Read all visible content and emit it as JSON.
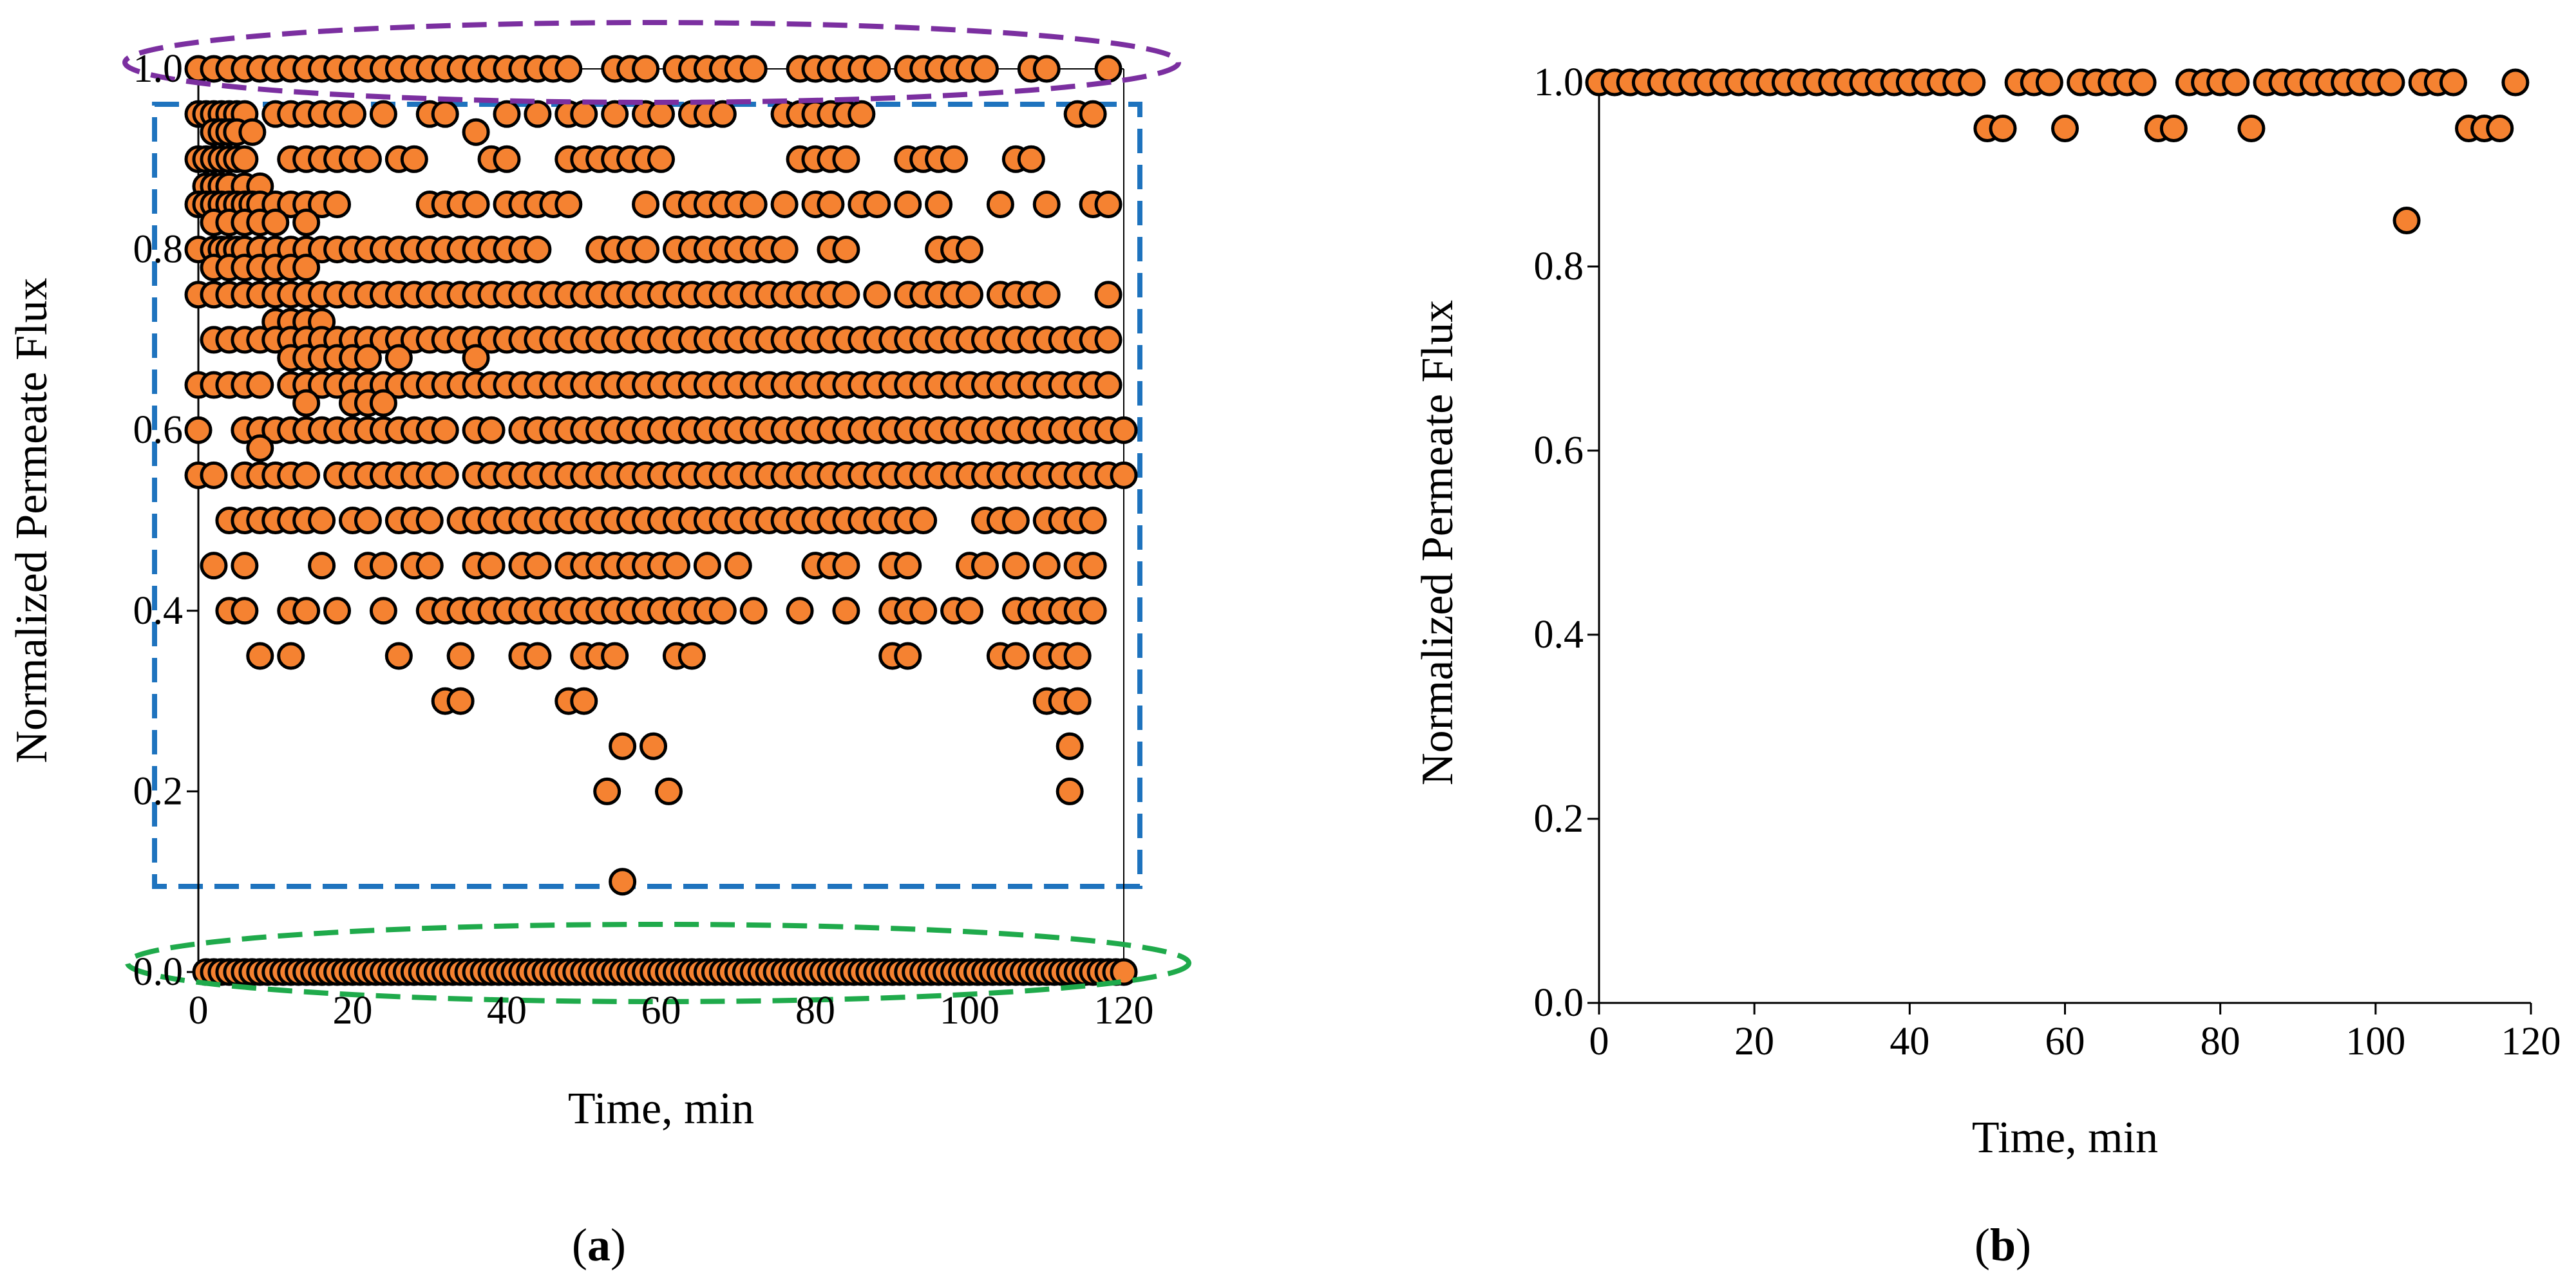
{
  "colors": {
    "marker_fill": "#F58231",
    "marker_stroke": "#000000",
    "highlight_top": "#7B2FA0",
    "highlight_middle": "#1E73BE",
    "highlight_bottom": "#1FAA4B",
    "axis": "#000000"
  },
  "chart_data": [
    {
      "panel": "a",
      "panel_label": "a",
      "type": "scatter",
      "xlabel": "Time, min",
      "ylabel": "Normalized Permeate Flux",
      "xlim": [
        0,
        120
      ],
      "ylim": [
        0,
        1.0
      ],
      "xticks": [
        "0",
        "20",
        "40",
        "60",
        "80",
        "100",
        "120"
      ],
      "yticks": [
        "0.0",
        "0.2",
        "0.4",
        "0.6",
        "0.8",
        "1.0"
      ],
      "highlights": [
        {
          "shape": "ellipse",
          "color": "purple",
          "region": "flux = 1.0 band"
        },
        {
          "shape": "rectangle",
          "color": "blue",
          "region": "flux 0.1 to 0.95 band"
        },
        {
          "shape": "ellipse",
          "color": "green",
          "region": "flux = 0.0 band"
        }
      ],
      "rows": [
        {
          "y": 1.0,
          "x": [
            0,
            2,
            4,
            6,
            8,
            10,
            12,
            14,
            16,
            18,
            20,
            22,
            24,
            26,
            28,
            30,
            32,
            34,
            36,
            38,
            40,
            42,
            44,
            46,
            48,
            54,
            56,
            58,
            62,
            64,
            66,
            68,
            70,
            72,
            78,
            80,
            82,
            84,
            86,
            88,
            92,
            94,
            96,
            98,
            100,
            102,
            108,
            110,
            118
          ]
        },
        {
          "y": 0.95,
          "x": [
            0,
            1,
            2,
            3,
            4,
            5,
            6,
            10,
            12,
            14,
            16,
            18,
            20,
            24,
            30,
            32,
            40,
            44,
            48,
            50,
            54,
            58,
            60,
            64,
            66,
            68,
            76,
            78,
            80,
            82,
            84,
            86,
            114,
            116
          ]
        },
        {
          "y": 0.93,
          "x": [
            2,
            3,
            4,
            5,
            7,
            36
          ]
        },
        {
          "y": 0.9,
          "x": [
            0,
            1,
            2,
            3,
            4,
            5,
            6,
            12,
            14,
            16,
            18,
            20,
            22,
            26,
            28,
            38,
            40,
            48,
            50,
            52,
            54,
            56,
            58,
            60,
            78,
            80,
            82,
            84,
            92,
            94,
            96,
            98,
            106,
            108
          ]
        },
        {
          "y": 0.87,
          "x": [
            1,
            2,
            3,
            4,
            6,
            8
          ]
        },
        {
          "y": 0.85,
          "x": [
            0,
            1,
            2,
            3,
            4,
            5,
            6,
            7,
            8,
            10,
            12,
            14,
            16,
            18,
            30,
            32,
            34,
            36,
            40,
            42,
            44,
            46,
            48,
            58,
            62,
            64,
            66,
            68,
            70,
            72,
            76,
            80,
            82,
            86,
            88,
            92,
            96,
            104,
            110,
            116,
            118
          ]
        },
        {
          "y": 0.83,
          "x": [
            2,
            4,
            6,
            8,
            10,
            14
          ]
        },
        {
          "y": 0.8,
          "x": [
            0,
            2,
            3,
            4,
            5,
            6,
            8,
            10,
            12,
            14,
            16,
            18,
            20,
            22,
            24,
            26,
            28,
            30,
            32,
            34,
            36,
            38,
            40,
            42,
            44,
            52,
            54,
            56,
            58,
            62,
            64,
            66,
            68,
            70,
            72,
            74,
            76,
            82,
            84,
            96,
            98,
            100
          ]
        },
        {
          "y": 0.78,
          "x": [
            2,
            4,
            6,
            8,
            10,
            12,
            14
          ]
        },
        {
          "y": 0.75,
          "x": [
            0,
            2,
            4,
            6,
            8,
            10,
            12,
            14,
            16,
            18,
            20,
            22,
            24,
            26,
            28,
            30,
            32,
            34,
            36,
            38,
            40,
            42,
            44,
            46,
            48,
            50,
            52,
            54,
            56,
            58,
            60,
            62,
            64,
            66,
            68,
            70,
            72,
            74,
            76,
            78,
            80,
            82,
            84,
            88,
            92,
            94,
            96,
            98,
            100,
            104,
            106,
            108,
            110,
            118
          ]
        },
        {
          "y": 0.72,
          "x": [
            10,
            12,
            14,
            16
          ]
        },
        {
          "y": 0.7,
          "x": [
            2,
            4,
            6,
            8,
            10,
            12,
            14,
            16,
            18,
            20,
            22,
            24,
            26,
            28,
            30,
            32,
            34,
            36,
            38,
            40,
            42,
            44,
            46,
            48,
            50,
            52,
            54,
            56,
            58,
            60,
            62,
            64,
            66,
            68,
            70,
            72,
            74,
            76,
            78,
            80,
            82,
            84,
            86,
            88,
            90,
            92,
            94,
            96,
            98,
            100,
            102,
            104,
            106,
            108,
            110,
            112,
            114,
            116,
            118
          ]
        },
        {
          "y": 0.68,
          "x": [
            12,
            14,
            16,
            18,
            20,
            22,
            26,
            36
          ]
        },
        {
          "y": 0.65,
          "x": [
            0,
            2,
            4,
            6,
            8,
            12,
            14,
            16,
            18,
            20,
            22,
            24,
            26,
            28,
            30,
            32,
            34,
            36,
            38,
            40,
            42,
            44,
            46,
            48,
            50,
            52,
            54,
            56,
            58,
            60,
            62,
            64,
            66,
            68,
            70,
            72,
            74,
            76,
            78,
            80,
            82,
            84,
            86,
            88,
            90,
            92,
            94,
            96,
            98,
            100,
            102,
            104,
            106,
            108,
            110,
            112,
            114,
            116,
            118
          ]
        },
        {
          "y": 0.63,
          "x": [
            14,
            20,
            22,
            24
          ]
        },
        {
          "y": 0.6,
          "x": [
            0,
            6,
            8,
            10,
            12,
            14,
            16,
            18,
            20,
            22,
            24,
            26,
            28,
            30,
            32,
            36,
            38,
            42,
            44,
            46,
            48,
            50,
            52,
            54,
            56,
            58,
            60,
            62,
            64,
            66,
            68,
            70,
            72,
            74,
            76,
            78,
            80,
            82,
            84,
            86,
            88,
            90,
            92,
            94,
            96,
            98,
            100,
            102,
            104,
            106,
            108,
            110,
            112,
            114,
            116,
            118,
            120
          ]
        },
        {
          "y": 0.58,
          "x": [
            8
          ]
        },
        {
          "y": 0.55,
          "x": [
            0,
            2,
            6,
            8,
            10,
            12,
            14,
            18,
            20,
            22,
            24,
            26,
            28,
            30,
            32,
            36,
            38,
            40,
            42,
            44,
            46,
            48,
            50,
            52,
            54,
            56,
            58,
            60,
            62,
            64,
            66,
            68,
            70,
            72,
            74,
            76,
            78,
            80,
            82,
            84,
            86,
            88,
            90,
            92,
            94,
            96,
            98,
            100,
            102,
            104,
            106,
            108,
            110,
            112,
            114,
            116,
            118,
            120
          ]
        },
        {
          "y": 0.5,
          "x": [
            4,
            6,
            8,
            10,
            12,
            14,
            16,
            20,
            22,
            26,
            28,
            30,
            34,
            36,
            38,
            40,
            42,
            44,
            46,
            48,
            50,
            52,
            54,
            56,
            58,
            60,
            62,
            64,
            66,
            68,
            70,
            72,
            74,
            76,
            78,
            80,
            82,
            84,
            86,
            88,
            90,
            92,
            94,
            102,
            104,
            106,
            110,
            112,
            114,
            116
          ]
        },
        {
          "y": 0.45,
          "x": [
            2,
            6,
            16,
            22,
            24,
            28,
            30,
            36,
            38,
            42,
            44,
            48,
            50,
            52,
            54,
            56,
            58,
            60,
            62,
            66,
            70,
            80,
            82,
            84,
            90,
            92,
            100,
            102,
            106,
            110,
            114,
            116
          ]
        },
        {
          "y": 0.4,
          "x": [
            4,
            6,
            12,
            14,
            18,
            24,
            30,
            32,
            34,
            36,
            38,
            40,
            42,
            44,
            46,
            48,
            50,
            52,
            54,
            56,
            58,
            60,
            62,
            64,
            66,
            68,
            72,
            78,
            84,
            90,
            92,
            94,
            98,
            100,
            106,
            108,
            110,
            112,
            114,
            116
          ]
        },
        {
          "y": 0.35,
          "x": [
            8,
            12,
            26,
            34,
            42,
            44,
            50,
            52,
            54,
            62,
            64,
            90,
            92,
            104,
            106,
            110,
            112,
            114
          ]
        },
        {
          "y": 0.3,
          "x": [
            32,
            34,
            48,
            50,
            110,
            112,
            114
          ]
        },
        {
          "y": 0.25,
          "x": [
            55,
            59,
            113
          ]
        },
        {
          "y": 0.2,
          "x": [
            53,
            61,
            113
          ]
        },
        {
          "y": 0.1,
          "x": [
            55
          ]
        },
        {
          "y": 0.0,
          "x": [
            1,
            2,
            3,
            4,
            5,
            6,
            7,
            8,
            9,
            10,
            11,
            12,
            13,
            14,
            15,
            16,
            17,
            18,
            19,
            20,
            21,
            22,
            23,
            24,
            25,
            26,
            27,
            28,
            29,
            30,
            31,
            32,
            33,
            34,
            35,
            36,
            37,
            38,
            39,
            40,
            41,
            42,
            43,
            44,
            45,
            46,
            47,
            48,
            49,
            50,
            51,
            52,
            53,
            54,
            55,
            56,
            57,
            58,
            59,
            60,
            61,
            62,
            63,
            64,
            65,
            66,
            67,
            68,
            69,
            70,
            71,
            72,
            73,
            74,
            75,
            76,
            77,
            78,
            79,
            80,
            81,
            82,
            83,
            84,
            85,
            86,
            87,
            88,
            89,
            90,
            91,
            92,
            93,
            94,
            95,
            96,
            97,
            98,
            99,
            100,
            101,
            102,
            103,
            104,
            105,
            106,
            107,
            108,
            109,
            110,
            111,
            112,
            113,
            114,
            115,
            116,
            117,
            118,
            119,
            120
          ]
        }
      ]
    },
    {
      "panel": "b",
      "panel_label": "b",
      "type": "scatter",
      "xlabel": "Time, min",
      "ylabel": "Normalized Permeate Flux",
      "xlim": [
        0,
        120
      ],
      "ylim": [
        0,
        1.0
      ],
      "xticks": [
        "0",
        "20",
        "40",
        "60",
        "80",
        "100",
        "120"
      ],
      "yticks": [
        "0.0",
        "0.2",
        "0.4",
        "0.6",
        "0.8",
        "1.0"
      ],
      "rows": [
        {
          "y": 1.0,
          "x": [
            0,
            2,
            4,
            6,
            8,
            10,
            12,
            14,
            16,
            18,
            20,
            22,
            24,
            26,
            28,
            30,
            32,
            34,
            36,
            38,
            40,
            42,
            44,
            46,
            48,
            54,
            56,
            58,
            62,
            64,
            66,
            68,
            70,
            76,
            78,
            80,
            82,
            86,
            88,
            90,
            92,
            94,
            96,
            98,
            100,
            102,
            106,
            108,
            110,
            118
          ]
        },
        {
          "y": 0.95,
          "x": [
            50,
            52,
            60,
            72,
            74,
            84,
            112,
            114,
            116
          ]
        },
        {
          "y": 0.85,
          "x": [
            104
          ]
        }
      ]
    }
  ]
}
